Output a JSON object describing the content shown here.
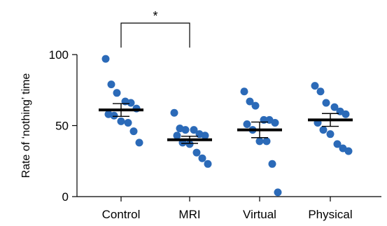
{
  "chart_data": {
    "type": "scatter",
    "title": "",
    "xlabel": "",
    "ylabel": "Rate of ‘nothing’ time",
    "ylim": [
      0,
      100
    ],
    "yticks": [
      "0",
      "50",
      "100"
    ],
    "categories": [
      "Control",
      "MRI",
      "Virtual",
      "Physical"
    ],
    "series": [
      {
        "category": "Control",
        "values": [
          97,
          79,
          73,
          67,
          66,
          62,
          58,
          57,
          53,
          52,
          46,
          38
        ],
        "mean": 61,
        "sem": 4.5
      },
      {
        "category": "MRI",
        "values": [
          59,
          48,
          47,
          47,
          44,
          43,
          43,
          38,
          37,
          31,
          27,
          23
        ],
        "mean": 40,
        "sem": 2.5
      },
      {
        "category": "Virtual",
        "values": [
          74,
          67,
          64,
          54,
          54,
          52,
          51,
          47,
          39,
          39,
          23,
          3
        ],
        "mean": 47,
        "sem": 5.5
      },
      {
        "category": "Physical",
        "values": [
          78,
          74,
          66,
          63,
          60,
          58,
          52,
          47,
          44,
          37,
          34,
          32
        ],
        "mean": 54,
        "sem": 4.5
      }
    ],
    "significance": [
      {
        "between": [
          "Control",
          "MRI"
        ],
        "label": "*"
      }
    ],
    "point_color": "#2b6ab8",
    "mean_bar_color": "#000000",
    "grid": false,
    "legend": "none"
  }
}
